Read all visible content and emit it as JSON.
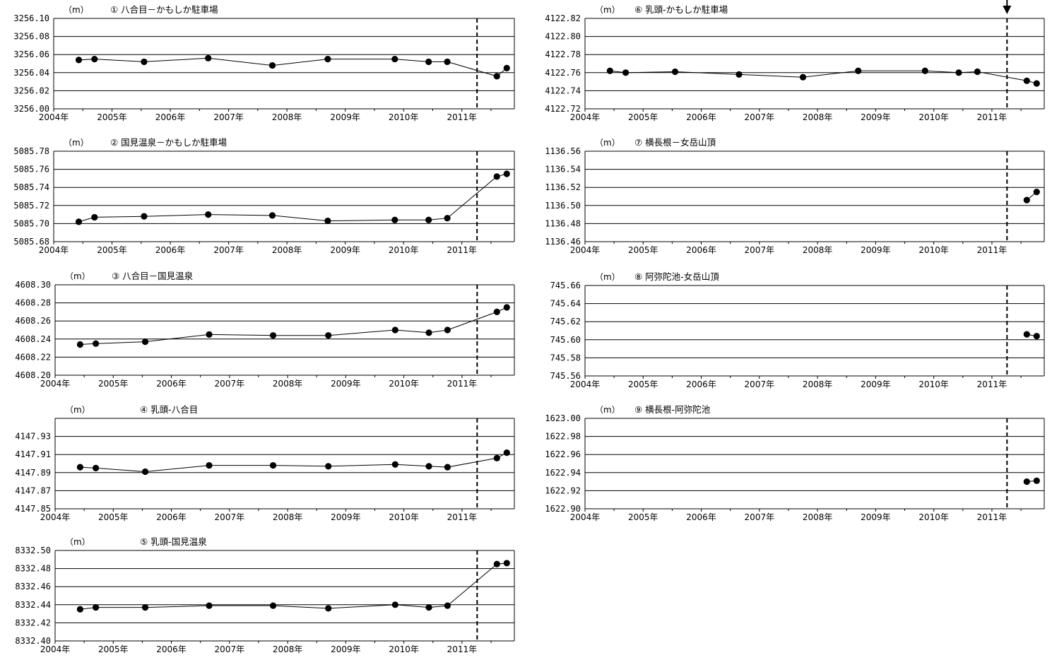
{
  "page": {
    "colors": {
      "line": "#000000",
      "grid": "#000000",
      "background": "#ffffff"
    }
  },
  "x_tick_labels": [
    "2004年",
    "2005年",
    "2006年",
    "2007年",
    "2008年",
    "2009年",
    "2010年",
    "2011年"
  ],
  "chart_data": [
    {
      "type": "line",
      "title": "① 八合目－かもしか駐車場",
      "unit": "（m）",
      "xlim": [
        2004.0,
        2011.9
      ],
      "ylim": [
        3256.0,
        3256.1
      ],
      "yticks": [
        3256.1,
        3256.08,
        3256.06,
        3256.04,
        3256.02,
        3256.0
      ],
      "ytick_labels": [
        "3256.10",
        "3256.08",
        "3256.06",
        "3256.04",
        "3256.02",
        "3256.00"
      ],
      "event_line_x": 2011.26,
      "x": [
        2004.43,
        2004.7,
        2005.55,
        2006.65,
        2007.75,
        2008.7,
        2009.85,
        2010.43,
        2010.75,
        2011.6,
        2011.77
      ],
      "y": [
        3256.054,
        3256.055,
        3256.052,
        3256.056,
        3256.048,
        3256.055,
        3256.055,
        3256.052,
        3256.052,
        3256.036,
        3256.045
      ]
    },
    {
      "type": "line",
      "title": "② 国見温泉－かもしか駐車場",
      "unit": "（m）",
      "xlim": [
        2004.0,
        2011.9
      ],
      "ylim": [
        5085.68,
        5085.78
      ],
      "yticks": [
        5085.78,
        5085.76,
        5085.74,
        5085.72,
        5085.7,
        5085.68
      ],
      "ytick_labels": [
        "5085.78",
        "5085.76",
        "5085.74",
        "5085.72",
        "5085.70",
        "5085.68"
      ],
      "event_line_x": 2011.26,
      "x": [
        2004.43,
        2004.7,
        2005.55,
        2006.65,
        2007.75,
        2008.7,
        2009.85,
        2010.43,
        2010.75,
        2011.6,
        2011.77
      ],
      "y": [
        5085.702,
        5085.707,
        5085.708,
        5085.71,
        5085.709,
        5085.703,
        5085.704,
        5085.704,
        5085.706,
        5085.752,
        5085.755
      ]
    },
    {
      "type": "line",
      "title": "③ 八合目－国見温泉",
      "unit": "（m）",
      "xlim": [
        2004.0,
        2011.9
      ],
      "ylim": [
        4608.2,
        4608.3
      ],
      "yticks": [
        4608.3,
        4608.28,
        4608.26,
        4608.24,
        4608.22,
        4608.2
      ],
      "ytick_labels": [
        "4608.30",
        "4608.28",
        "4608.26",
        "4608.24",
        "4608.22",
        "4608.20"
      ],
      "event_line_x": 2011.26,
      "x": [
        2004.43,
        2004.7,
        2005.55,
        2006.65,
        2007.75,
        2008.7,
        2009.85,
        2010.43,
        2010.75,
        2011.6,
        2011.77
      ],
      "y": [
        4608.234,
        4608.235,
        4608.237,
        4608.245,
        4608.244,
        4608.244,
        4608.25,
        4608.247,
        4608.25,
        4608.27,
        4608.275
      ]
    },
    {
      "type": "line",
      "title": "④ 乳頭-八合目",
      "unit": "（m）",
      "xlim": [
        2004.0,
        2011.9
      ],
      "ylim": [
        4147.85,
        4147.95
      ],
      "yticks": [
        4147.93,
        4147.91,
        4147.89,
        4147.87,
        4147.85
      ],
      "ytick_labels": [
        "4147.93",
        "4147.91",
        "4147.89",
        "4147.87",
        "4147.85"
      ],
      "event_line_x": 2011.26,
      "x": [
        2004.43,
        2004.7,
        2005.55,
        2006.65,
        2007.75,
        2008.7,
        2009.85,
        2010.43,
        2010.75,
        2011.6,
        2011.77
      ],
      "y": [
        4147.896,
        4147.895,
        4147.891,
        4147.898,
        4147.898,
        4147.897,
        4147.899,
        4147.897,
        4147.896,
        4147.906,
        4147.912
      ]
    },
    {
      "type": "line",
      "title": "⑤ 乳頭-国見温泉",
      "unit": "（m）",
      "xlim": [
        2004.0,
        2011.9
      ],
      "ylim": [
        8332.4,
        8332.5
      ],
      "yticks": [
        8332.5,
        8332.48,
        8332.46,
        8332.44,
        8332.42,
        8332.4
      ],
      "ytick_labels": [
        "8332.50",
        "8332.48",
        "8332.46",
        "8332.44",
        "8332.42",
        "8332.40"
      ],
      "event_line_x": 2011.26,
      "x": [
        2004.43,
        2004.7,
        2005.55,
        2006.65,
        2007.75,
        2008.7,
        2009.85,
        2010.43,
        2010.75,
        2011.6,
        2011.77
      ],
      "y": [
        8332.435,
        8332.437,
        8332.437,
        8332.439,
        8332.439,
        8332.436,
        8332.44,
        8332.437,
        8332.439,
        8332.485,
        8332.486
      ]
    },
    {
      "type": "line",
      "title": "⑥ 乳頭-かもしか駐車場",
      "unit": "（m）",
      "xlim": [
        2004.0,
        2011.9
      ],
      "ylim": [
        4122.72,
        4122.82
      ],
      "yticks": [
        4122.82,
        4122.8,
        4122.78,
        4122.76,
        4122.74,
        4122.72
      ],
      "ytick_labels": [
        "4122.82",
        "4122.80",
        "4122.78",
        "4122.76",
        "4122.74",
        "4122.72"
      ],
      "event_line_x": 2011.26,
      "event_arrow": true,
      "x": [
        2004.43,
        2004.7,
        2005.55,
        2006.65,
        2007.75,
        2008.7,
        2009.85,
        2010.43,
        2010.75,
        2011.6,
        2011.77
      ],
      "y": [
        4122.762,
        4122.76,
        4122.761,
        4122.758,
        4122.755,
        4122.762,
        4122.762,
        4122.76,
        4122.761,
        4122.751,
        4122.748
      ]
    },
    {
      "type": "line",
      "title": "⑦ 横長根－女岳山頂",
      "unit": "（m）",
      "xlim": [
        2004.0,
        2011.9
      ],
      "ylim": [
        1136.46,
        1136.56
      ],
      "yticks": [
        1136.56,
        1136.54,
        1136.52,
        1136.5,
        1136.48,
        1136.46
      ],
      "ytick_labels": [
        "1136.56",
        "1136.54",
        "1136.52",
        "1136.50",
        "1136.48",
        "1136.46"
      ],
      "event_line_x": 2011.26,
      "x": [
        2011.6,
        2011.77
      ],
      "y": [
        1136.506,
        1136.515
      ]
    },
    {
      "type": "line",
      "title": "⑧ 阿弥陀池-女岳山頂",
      "unit": "（m）",
      "xlim": [
        2004.0,
        2011.9
      ],
      "ylim": [
        745.56,
        745.66
      ],
      "yticks": [
        745.66,
        745.64,
        745.62,
        745.6,
        745.58,
        745.56
      ],
      "ytick_labels": [
        "745.66",
        "745.64",
        "745.62",
        "745.60",
        "745.58",
        "745.56"
      ],
      "event_line_x": 2011.26,
      "x": [
        2011.6,
        2011.77
      ],
      "y": [
        745.606,
        745.604
      ]
    },
    {
      "type": "line",
      "title": "⑨ 横長根-阿弥陀池",
      "unit": "（m）",
      "xlim": [
        2004.0,
        2011.9
      ],
      "ylim": [
        1622.9,
        1623.0
      ],
      "yticks": [
        1623.0,
        1622.98,
        1622.96,
        1622.94,
        1622.92,
        1622.9
      ],
      "ytick_labels": [
        "1623.00",
        "1622.98",
        "1622.96",
        "1622.94",
        "1622.92",
        "1622.90"
      ],
      "event_line_x": 2011.26,
      "x": [
        2011.6,
        2011.77
      ],
      "y": [
        1622.93,
        1622.931
      ]
    }
  ]
}
